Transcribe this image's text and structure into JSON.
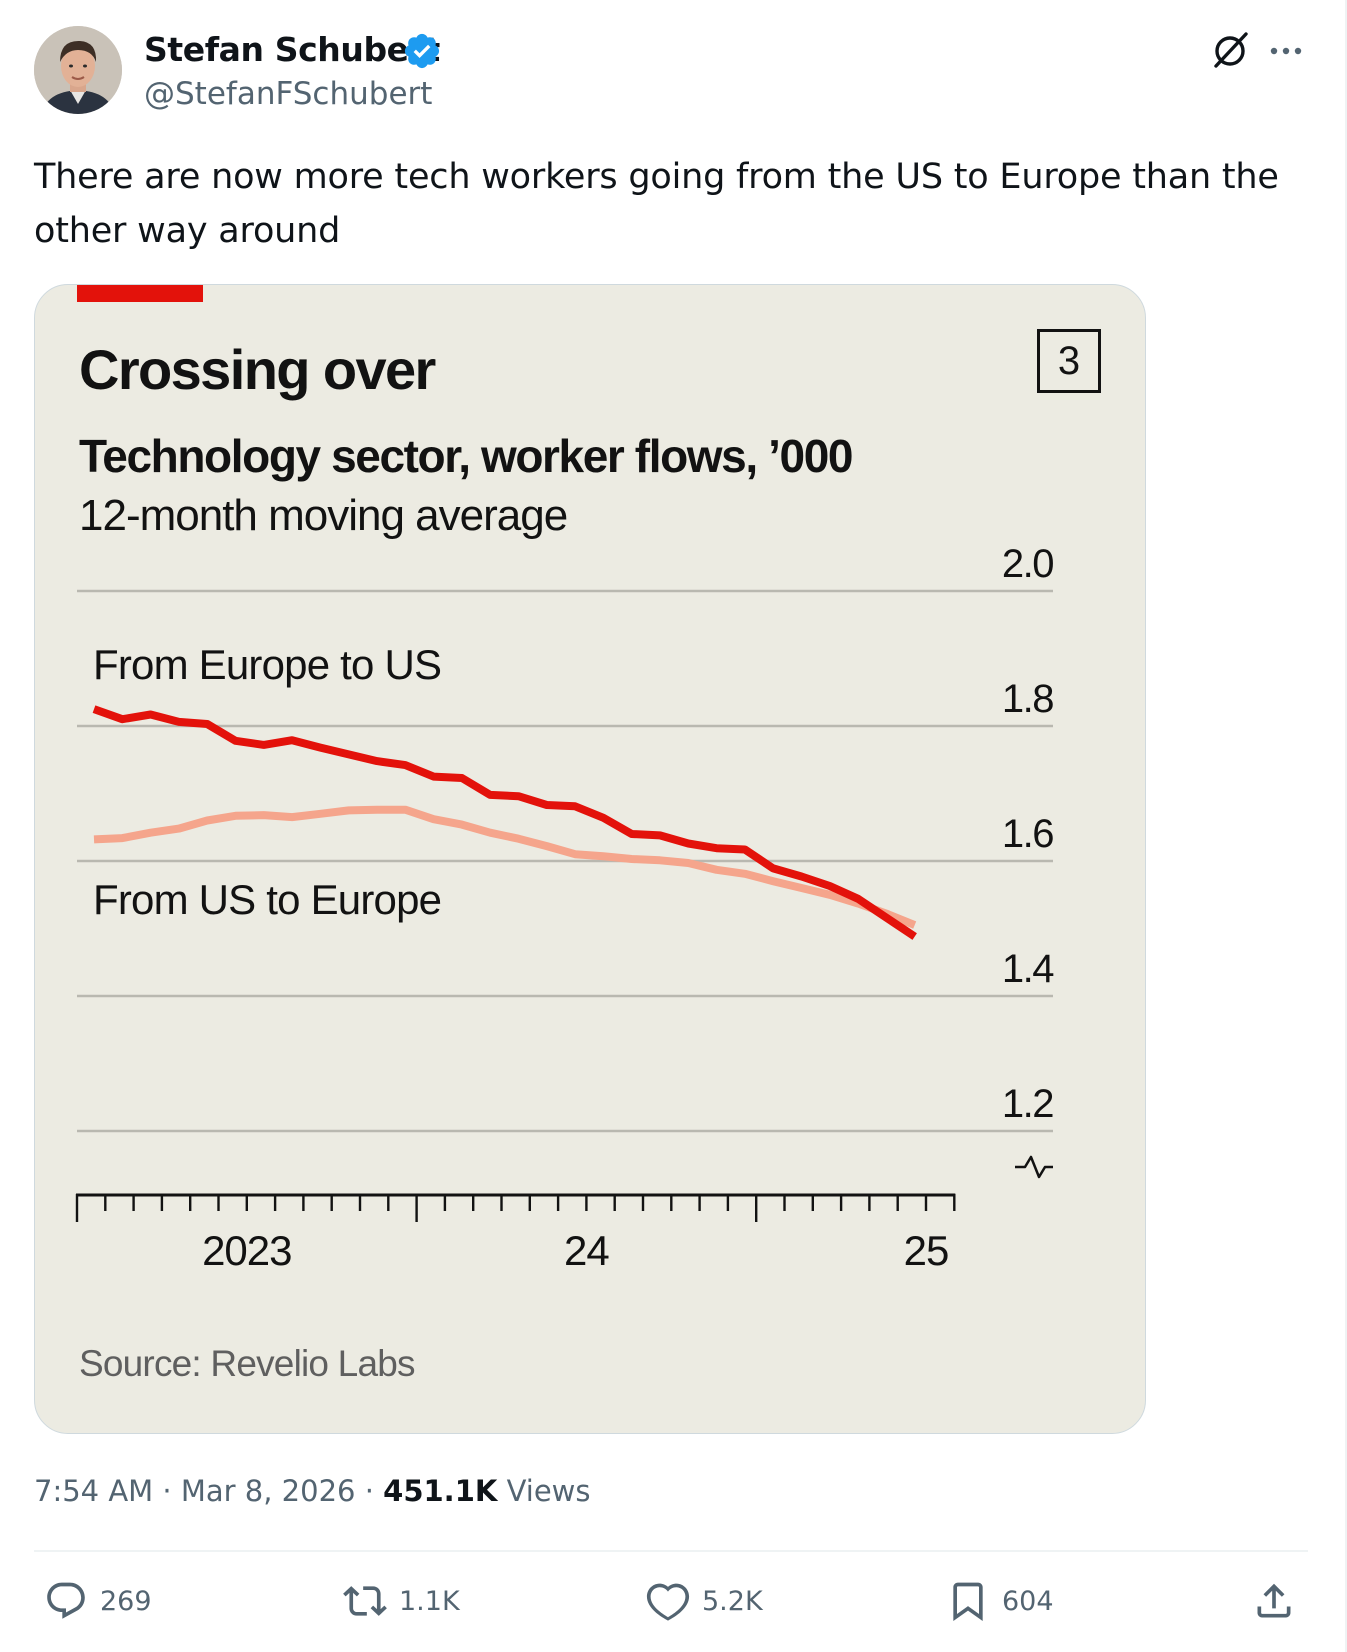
{
  "author": {
    "name": "Stefan Schubert",
    "handle": "@StefanFSchubert",
    "verified": true
  },
  "tweet": {
    "text": "There are now more tech workers going from the US to Europe than the other way around"
  },
  "meta": {
    "time": "7:54 AM",
    "date": "Mar 8, 2026",
    "separator": "·",
    "views_count": "451.1K",
    "views_label": "Views"
  },
  "actions": {
    "replies": "269",
    "reposts": "1.1K",
    "likes": "5.2K",
    "bookmarks": "604"
  },
  "icons": [
    "verified-badge-icon",
    "grok-icon",
    "more-icon",
    "reply-icon",
    "repost-icon",
    "like-icon",
    "bookmark-icon",
    "share-icon",
    "axis-break-icon"
  ],
  "colors": {
    "accent_blue": "#1d9bf0",
    "chart_bg": "#ecebe2",
    "economist_red": "#e3120b",
    "series_europe_to_us": "#e3120b",
    "series_us_to_europe": "#f5a58c"
  },
  "chart_data": {
    "type": "line",
    "title": "Crossing over",
    "chart_number": "3",
    "subtitle": "Technology sector, worker flows, ’000",
    "caption": "12-month moving average",
    "source": "Source: Revelio Labs",
    "y_ticks": [
      "2.0",
      "1.8",
      "1.6",
      "1.4",
      "1.2"
    ],
    "y_tick_values": [
      2.0,
      1.8,
      1.6,
      1.4,
      1.2
    ],
    "ylim": [
      1.2,
      2.0
    ],
    "x_labels": [
      {
        "label": "2023",
        "at": 6
      },
      {
        "label": "24",
        "at": 18
      },
      {
        "label": "25",
        "at": 30
      }
    ],
    "x_tick_count": 32,
    "x_start_month": "Jul 2022",
    "series": [
      {
        "name": "From Europe to US",
        "values": [
          1.825,
          1.81,
          1.817,
          1.806,
          1.803,
          1.778,
          1.772,
          1.779,
          1.768,
          1.758,
          1.748,
          1.742,
          1.725,
          1.723,
          1.698,
          1.696,
          1.683,
          1.681,
          1.664,
          1.64,
          1.638,
          1.626,
          1.619,
          1.617,
          1.589,
          1.577,
          1.563,
          1.544,
          1.516,
          1.488
        ]
      },
      {
        "name": "From US to Europe",
        "values": [
          1.632,
          1.634,
          1.642,
          1.648,
          1.66,
          1.667,
          1.668,
          1.665,
          1.67,
          1.675,
          1.676,
          1.676,
          1.662,
          1.654,
          1.642,
          1.633,
          1.622,
          1.61,
          1.607,
          1.603,
          1.601,
          1.597,
          1.587,
          1.581,
          1.57,
          1.56,
          1.55,
          1.537,
          1.522,
          1.505
        ]
      }
    ]
  }
}
